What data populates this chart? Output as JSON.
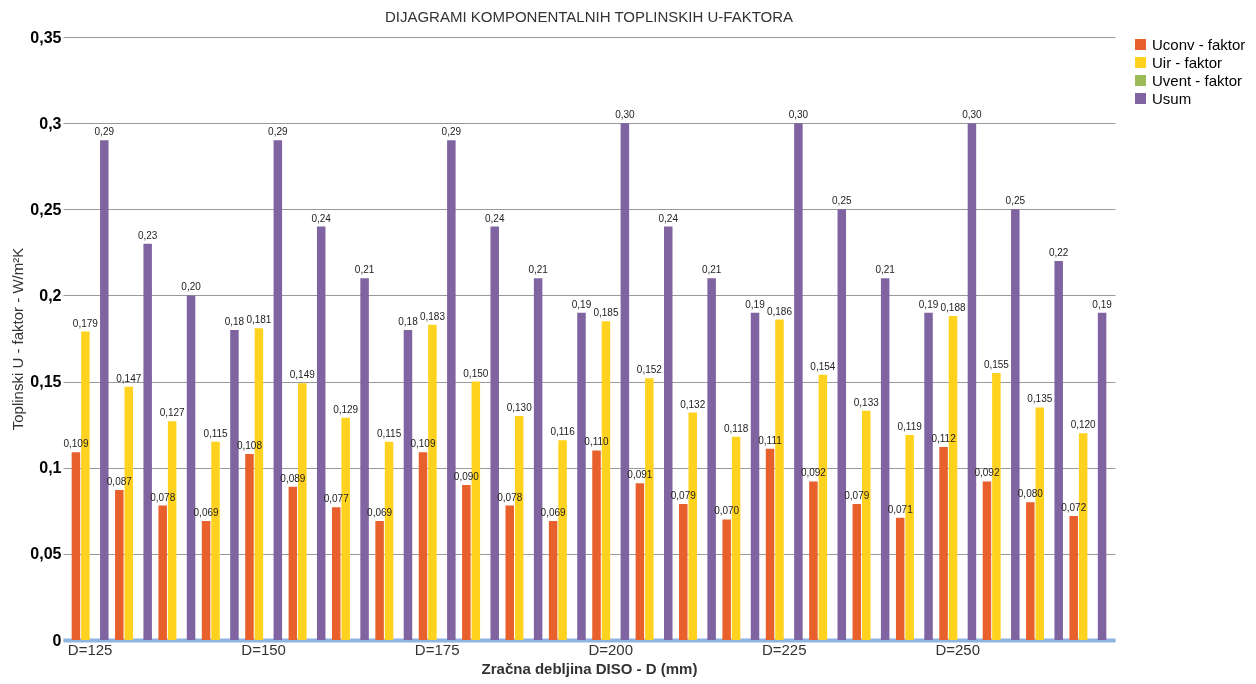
{
  "chart_data": {
    "type": "bar",
    "title": "DIJAGRAMI KOMPONENTALNIH TOPLINSKIH U-FAKTORA",
    "xlabel": "Zračna debljina DISO - D (mm)",
    "ylabel": "Toplinski U - faktor - W/m²K",
    "categories": [
      "D=125",
      null,
      null,
      null,
      "D=150",
      null,
      null,
      null,
      "D=175",
      null,
      null,
      null,
      "D=200",
      null,
      null,
      null,
      "D=225",
      null,
      null,
      null,
      "D=250",
      null,
      null,
      null
    ],
    "series": [
      {
        "name": "Uconv - faktor",
        "color": "#e8602c",
        "values": [
          0.109,
          0.087,
          0.078,
          0.069,
          0.108,
          0.089,
          0.077,
          0.069,
          0.109,
          0.09,
          0.078,
          0.069,
          0.11,
          0.091,
          0.079,
          0.07,
          0.111,
          0.092,
          0.079,
          0.071,
          0.112,
          0.092,
          0.08,
          0.072
        ],
        "value_labels": [
          "0,109",
          "0,087",
          "0,078",
          "0,069",
          "0,108",
          "0,089",
          "0,077",
          "0,069",
          "0,109",
          "0,090",
          "0,078",
          "0,069",
          "0,110",
          "0,091",
          "0,079",
          "0,070",
          "0,111",
          "0,092",
          "0,079",
          "0,071",
          "0,112",
          "0,092",
          "0,080",
          "0,072"
        ]
      },
      {
        "name": "Uir - faktor",
        "color": "#ffd21f",
        "values": [
          0.179,
          0.147,
          0.127,
          0.115,
          0.181,
          0.149,
          0.129,
          0.115,
          0.183,
          0.15,
          0.13,
          0.116,
          0.185,
          0.152,
          0.132,
          0.118,
          0.186,
          0.154,
          0.133,
          0.119,
          0.188,
          0.155,
          0.135,
          0.12
        ],
        "value_labels": [
          "0,179",
          "0,147",
          "0,127",
          "0,115",
          "0,181",
          "0,149",
          "0,129",
          "0,115",
          "0,183",
          "0,150",
          "0,130",
          "0,116",
          "0,185",
          "0,152",
          "0,132",
          "0,118",
          "0,186",
          "0,154",
          "0,133",
          "0,119",
          "0,188",
          "0,155",
          "0,135",
          "0,120"
        ]
      },
      {
        "name": "Uvent - faktor",
        "color": "#9bbb59",
        "values": [
          null,
          null,
          null,
          null,
          null,
          null,
          null,
          null,
          null,
          null,
          null,
          null,
          null,
          null,
          null,
          null,
          null,
          null,
          null,
          null,
          null,
          null,
          null,
          null
        ]
      },
      {
        "name": "Usum",
        "color": "#8064a2",
        "values": [
          0.29,
          0.23,
          0.2,
          0.18,
          0.29,
          0.24,
          0.21,
          0.18,
          0.29,
          0.24,
          0.21,
          0.19,
          0.3,
          0.24,
          0.21,
          0.19,
          0.3,
          0.25,
          0.21,
          0.19,
          0.3,
          0.25,
          0.22,
          0.19
        ],
        "value_labels": [
          "0,29",
          "0,23",
          "0,20",
          "0,18",
          "0,29",
          "0,24",
          "0,21",
          "0,18",
          "0,29",
          "0,24",
          "0,21",
          "0,19",
          "0,30",
          "0,24",
          "0,21",
          "0,19",
          "0,30",
          "0,25",
          "0,21",
          "0,19",
          "0,30",
          "0,25",
          "0,22",
          "0,19"
        ]
      }
    ],
    "ylim": [
      0,
      0.35
    ],
    "yticks": [
      0,
      {
        "value": 0.05,
        "label": "0,05"
      },
      {
        "value": 0.1,
        "label": "0,1"
      },
      {
        "value": 0.15,
        "label": "0,15"
      },
      {
        "value": 0.2,
        "label": "0,2"
      },
      {
        "value": 0.25,
        "label": "0,25"
      },
      {
        "value": 0.3,
        "label": "0,3"
      },
      {
        "value": 0.35,
        "label": "0,35"
      }
    ],
    "grid": "y",
    "legend": "right"
  }
}
